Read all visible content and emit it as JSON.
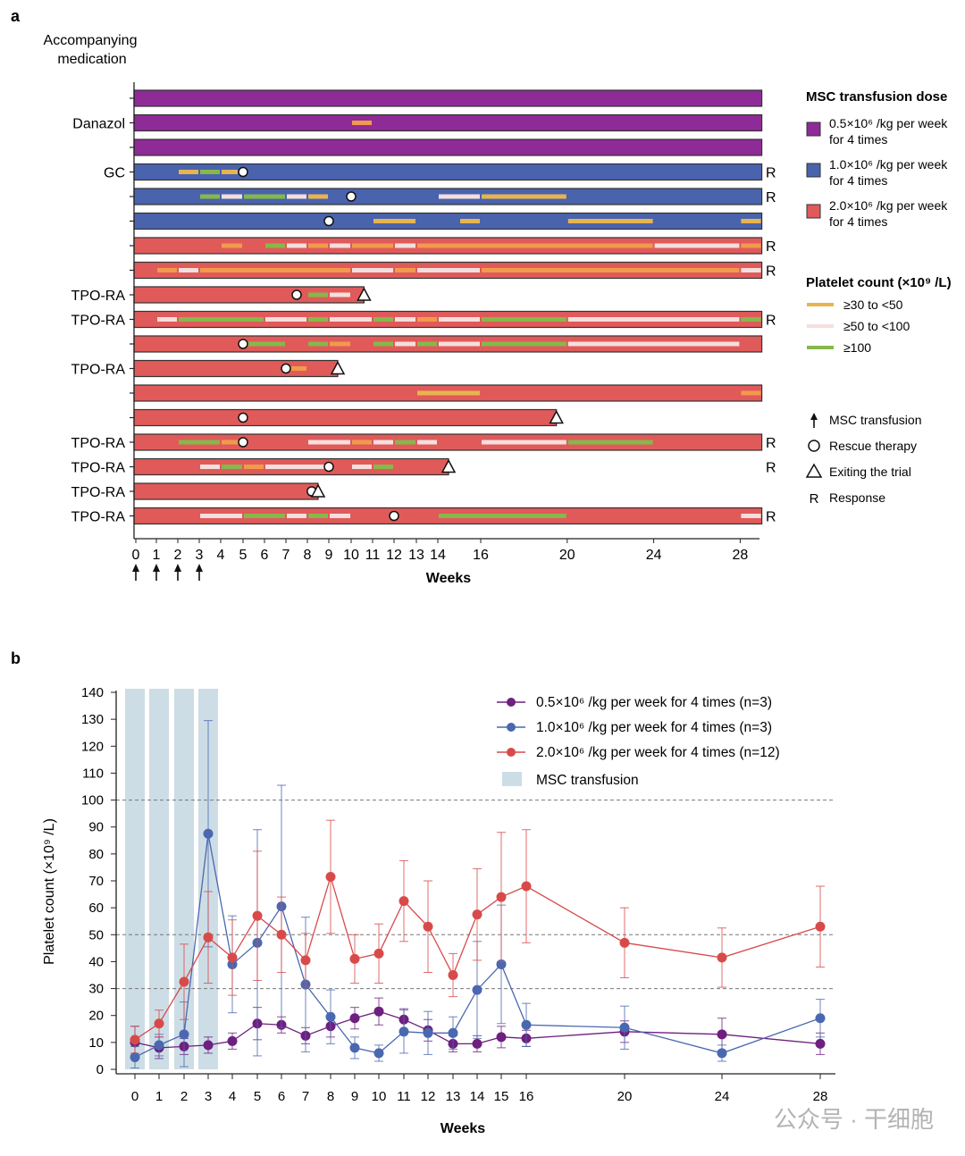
{
  "colors": {
    "dose_low": "#8e2b97",
    "dose_mid": "#4a63ad",
    "dose_high": "#e05a5a",
    "pc_30_50": "#e8b44e",
    "pc_50_100": "#f4dfdd",
    "pc_100": "#86b84b",
    "pc_orange": "#f19a4c",
    "line_low": "#6e1f7f",
    "line_mid": "#4a68b0",
    "line_high": "#d84a4a",
    "msc_band": "#cddde6"
  },
  "panel_a": {
    "label": "a",
    "med_header": [
      "Accompanying",
      "medication"
    ],
    "legend_dose": {
      "title": "MSC transfusion dose",
      "items": [
        {
          "line1": "0.5×10⁶ /kg per week",
          "line2": "for 4 times",
          "color_key": "dose_low"
        },
        {
          "line1": "1.0×10⁶ /kg per week",
          "line2": "for 4 times",
          "color_key": "dose_mid"
        },
        {
          "line1": "2.0×10⁶ /kg per week",
          "line2": "for 4 times",
          "color_key": "dose_high"
        }
      ]
    },
    "legend_platelet": {
      "title": "Platelet count (×10⁹ /L)",
      "items": [
        {
          "label": "≥30 to <50",
          "color_key": "pc_30_50"
        },
        {
          "label": "≥50 to <100",
          "color_key": "pc_50_100"
        },
        {
          "label": "≥100",
          "color_key": "pc_100"
        }
      ]
    },
    "legend_symbols": [
      {
        "symbol": "arrow",
        "label": "MSC transfusion"
      },
      {
        "symbol": "circle",
        "label": "Rescue therapy"
      },
      {
        "symbol": "triangle",
        "label": "Exiting the trial"
      },
      {
        "symbol": "R",
        "label": "Response"
      }
    ],
    "x_ticks": [
      {
        "week": 0,
        "label": "0"
      },
      {
        "week": 1,
        "label": "1"
      },
      {
        "week": 2,
        "label": "2"
      },
      {
        "week": 3,
        "label": "3"
      },
      {
        "week": 4,
        "label": "4"
      },
      {
        "week": 5,
        "label": "5"
      },
      {
        "week": 6,
        "label": "6"
      },
      {
        "week": 7,
        "label": "7"
      },
      {
        "week": 8,
        "label": "8"
      },
      {
        "week": 9,
        "label": "9"
      },
      {
        "week": 10,
        "label": "10"
      },
      {
        "week": 11,
        "label": "11"
      },
      {
        "week": 12,
        "label": "12"
      },
      {
        "week": 13,
        "label": "13"
      },
      {
        "week": 14,
        "label": "14"
      },
      {
        "week": 16,
        "label": "16"
      },
      {
        "week": 20,
        "label": "20"
      },
      {
        "week": 24,
        "label": "24"
      },
      {
        "week": 28,
        "label": "28"
      }
    ],
    "x_label": "Weeks",
    "transfusion_weeks": [
      0,
      1,
      2,
      3
    ],
    "patients": [
      {
        "dose": "dose_low",
        "med": "",
        "end": 29,
        "response": "",
        "rescue": null,
        "exit": null,
        "segments": []
      },
      {
        "dose": "dose_low",
        "med": "Danazol",
        "end": 29,
        "response": "",
        "rescue": null,
        "exit": null,
        "segments": [
          [
            10,
            11,
            "pc_orange"
          ]
        ]
      },
      {
        "dose": "dose_low",
        "med": "",
        "end": 29,
        "response": "",
        "rescue": null,
        "exit": null,
        "segments": []
      },
      {
        "dose": "dose_mid",
        "med": "GC",
        "end": 29,
        "response": "R",
        "rescue": 5,
        "exit": null,
        "segments": [
          [
            2,
            3,
            "pc_30_50"
          ],
          [
            3,
            4,
            "pc_100"
          ],
          [
            4,
            4.8,
            "pc_30_50"
          ]
        ]
      },
      {
        "dose": "dose_mid",
        "med": "",
        "end": 29,
        "response": "R",
        "rescue": 10,
        "exit": null,
        "segments": [
          [
            3,
            4,
            "pc_100"
          ],
          [
            4,
            5,
            "pc_50_100"
          ],
          [
            5,
            7,
            "pc_100"
          ],
          [
            7,
            8,
            "pc_50_100"
          ],
          [
            8,
            9,
            "pc_30_50"
          ],
          [
            14,
            16,
            "pc_50_100"
          ],
          [
            16,
            20,
            "pc_30_50"
          ]
        ]
      },
      {
        "dose": "dose_mid",
        "med": "",
        "end": 29,
        "response": "",
        "rescue": 9,
        "exit": null,
        "segments": [
          [
            11,
            13,
            "pc_30_50"
          ],
          [
            15,
            16,
            "pc_30_50"
          ],
          [
            20,
            24,
            "pc_30_50"
          ],
          [
            28,
            29,
            "pc_30_50"
          ]
        ]
      },
      {
        "dose": "dose_high",
        "med": "",
        "end": 29,
        "response": "R",
        "rescue": null,
        "exit": null,
        "segments": [
          [
            4,
            5,
            "pc_orange"
          ],
          [
            6,
            7,
            "pc_100"
          ],
          [
            7,
            8,
            "pc_50_100"
          ],
          [
            8,
            9,
            "pc_orange"
          ],
          [
            9,
            10,
            "pc_50_100"
          ],
          [
            10,
            12,
            "pc_orange"
          ],
          [
            12,
            13,
            "pc_50_100"
          ],
          [
            13,
            24,
            "pc_orange"
          ],
          [
            24,
            28,
            "pc_50_100"
          ],
          [
            28,
            29,
            "pc_orange"
          ]
        ]
      },
      {
        "dose": "dose_high",
        "med": "",
        "end": 29,
        "response": "R",
        "rescue": null,
        "exit": null,
        "segments": [
          [
            1,
            2,
            "pc_orange"
          ],
          [
            2,
            3,
            "pc_50_100"
          ],
          [
            3,
            10,
            "pc_orange"
          ],
          [
            10,
            12,
            "pc_50_100"
          ],
          [
            12,
            13,
            "pc_orange"
          ],
          [
            13,
            16,
            "pc_50_100"
          ],
          [
            16,
            28,
            "pc_orange"
          ],
          [
            28,
            29,
            "pc_50_100"
          ]
        ]
      },
      {
        "dose": "dose_high",
        "med": "TPO-RA",
        "end": 10.6,
        "response": "",
        "rescue": 7.5,
        "exit": 10.6,
        "segments": [
          [
            8,
            9,
            "pc_100"
          ],
          [
            9,
            10,
            "pc_50_100"
          ]
        ]
      },
      {
        "dose": "dose_high",
        "med": "TPO-RA",
        "end": 29,
        "response": "R",
        "rescue": null,
        "exit": null,
        "segments": [
          [
            1,
            2,
            "pc_50_100"
          ],
          [
            2,
            6,
            "pc_100"
          ],
          [
            6,
            8,
            "pc_50_100"
          ],
          [
            8,
            9,
            "pc_100"
          ],
          [
            9,
            11,
            "pc_50_100"
          ],
          [
            11,
            12,
            "pc_100"
          ],
          [
            12,
            13,
            "pc_50_100"
          ],
          [
            13,
            14,
            "pc_orange"
          ],
          [
            14,
            16,
            "pc_50_100"
          ],
          [
            16,
            20,
            "pc_100"
          ],
          [
            20,
            28,
            "pc_50_100"
          ],
          [
            28,
            29,
            "pc_100"
          ]
        ]
      },
      {
        "dose": "dose_high",
        "med": "",
        "end": 29,
        "response": "",
        "rescue": 5,
        "exit": null,
        "segments": [
          [
            5,
            7,
            "pc_100"
          ],
          [
            8,
            9,
            "pc_100"
          ],
          [
            9,
            10,
            "pc_orange"
          ],
          [
            11,
            12,
            "pc_100"
          ],
          [
            12,
            13,
            "pc_50_100"
          ],
          [
            13,
            14,
            "pc_100"
          ],
          [
            14,
            16,
            "pc_50_100"
          ],
          [
            16,
            20,
            "pc_100"
          ],
          [
            20,
            28,
            "pc_50_100"
          ]
        ]
      },
      {
        "dose": "dose_high",
        "med": "TPO-RA",
        "end": 9.4,
        "response": "",
        "rescue": 7,
        "exit": 9.4,
        "segments": [
          [
            7,
            8,
            "pc_orange"
          ]
        ]
      },
      {
        "dose": "dose_high",
        "med": "",
        "end": 29,
        "response": "",
        "rescue": null,
        "exit": null,
        "segments": [
          [
            13,
            16,
            "pc_30_50"
          ],
          [
            28,
            29,
            "pc_orange"
          ]
        ]
      },
      {
        "dose": "dose_high",
        "med": "",
        "end": 19.5,
        "response": "",
        "rescue": 5,
        "exit": 19.5,
        "segments": []
      },
      {
        "dose": "dose_high",
        "med": "TPO-RA",
        "end": 29,
        "response": "R",
        "rescue": 5,
        "exit": null,
        "segments": [
          [
            2,
            4,
            "pc_100"
          ],
          [
            4,
            5,
            "pc_orange"
          ],
          [
            8,
            10,
            "pc_50_100"
          ],
          [
            10,
            11,
            "pc_orange"
          ],
          [
            11,
            12,
            "pc_50_100"
          ],
          [
            12,
            13,
            "pc_100"
          ],
          [
            13,
            14,
            "pc_50_100"
          ],
          [
            16,
            20,
            "pc_50_100"
          ],
          [
            20,
            24,
            "pc_100"
          ]
        ]
      },
      {
        "dose": "dose_high",
        "med": "TPO-RA",
        "end": 14.5,
        "response": "R",
        "rescue": 9,
        "exit": 14.5,
        "segments": [
          [
            3,
            4,
            "pc_50_100"
          ],
          [
            4,
            5,
            "pc_100"
          ],
          [
            5,
            6,
            "pc_orange"
          ],
          [
            6,
            9,
            "pc_50_100"
          ],
          [
            10,
            11,
            "pc_50_100"
          ],
          [
            11,
            12,
            "pc_100"
          ]
        ]
      },
      {
        "dose": "dose_high",
        "med": "TPO-RA",
        "end": 8.5,
        "response": "",
        "rescue": 8.2,
        "exit": 8.5,
        "segments": []
      },
      {
        "dose": "dose_high",
        "med": "TPO-RA",
        "end": 29,
        "response": "R",
        "rescue": 12,
        "exit": null,
        "segments": [
          [
            3,
            5,
            "pc_50_100"
          ],
          [
            5,
            7,
            "pc_100"
          ],
          [
            7,
            8,
            "pc_50_100"
          ],
          [
            8,
            9,
            "pc_100"
          ],
          [
            9,
            10,
            "pc_50_100"
          ],
          [
            14,
            20,
            "pc_100"
          ],
          [
            28,
            29,
            "pc_50_100"
          ]
        ]
      }
    ]
  },
  "chart_data": {
    "type": "line",
    "label": "b",
    "title": "",
    "xlabel": "Weeks",
    "ylabel": "Platelet count (×10⁹ /L)",
    "ylim": [
      0,
      140
    ],
    "y_ticks": [
      0,
      10,
      20,
      30,
      40,
      50,
      60,
      70,
      80,
      90,
      100,
      110,
      120,
      130,
      140
    ],
    "x_categories": [
      "0",
      "1",
      "2",
      "3",
      "4",
      "5",
      "6",
      "7",
      "8",
      "9",
      "10",
      "11",
      "12",
      "13",
      "14",
      "15",
      "16",
      "20",
      "24",
      "28"
    ],
    "reference_lines": [
      30,
      50,
      100
    ],
    "msc_transfusion_weeks": [
      "0",
      "1",
      "2",
      "3"
    ],
    "legend_msc": "MSC transfusion",
    "series": [
      {
        "name": "0.5×10⁶ /kg per week for 4 times (n=3)",
        "color_key": "line_low",
        "x": [
          "0",
          "1",
          "2",
          "3",
          "4",
          "5",
          "6",
          "7",
          "8",
          "9",
          "10",
          "11",
          "12",
          "13",
          "14",
          "15",
          "16",
          "20",
          "24",
          "28"
        ],
        "values": [
          10,
          8,
          8.5,
          9,
          10.5,
          17,
          16.5,
          12.5,
          16,
          19,
          21.5,
          18.5,
          14.5,
          9.5,
          9.5,
          12,
          11.5,
          14,
          13,
          9.5
        ],
        "err_up": [
          6,
          4,
          3,
          3,
          3,
          6,
          3,
          3,
          4,
          4,
          5,
          4,
          4,
          3,
          3,
          4,
          3,
          4,
          6,
          4
        ],
        "err_down": [
          6,
          4,
          3,
          3,
          3,
          6,
          3,
          3,
          4,
          4,
          5,
          4,
          4,
          3,
          3,
          4,
          3,
          4,
          6,
          4
        ]
      },
      {
        "name": "1.0×10⁶ /kg per week for 4 times (n=3)",
        "color_key": "line_mid",
        "x": [
          "0",
          "1",
          "2",
          "3",
          "4",
          "5",
          "6",
          "7",
          "8",
          "9",
          "10",
          "11",
          "12",
          "13",
          "14",
          "15",
          "16",
          "20",
          "24",
          "28"
        ],
        "values": [
          4.5,
          9,
          13,
          87.5,
          39,
          47,
          60.5,
          31.5,
          19.5,
          8,
          6,
          14,
          13.5,
          13.5,
          29.5,
          39,
          16.5,
          15.5,
          6,
          19
        ],
        "err_up": [
          4,
          4,
          12,
          42,
          18,
          42,
          45,
          25,
          10,
          4,
          3,
          8,
          8,
          6,
          18,
          22,
          8,
          8,
          3,
          7
        ],
        "err_down": [
          4,
          4,
          12,
          42,
          18,
          42,
          45,
          25,
          10,
          4,
          3,
          8,
          8,
          6,
          18,
          22,
          8,
          8,
          3,
          7
        ]
      },
      {
        "name": "2.0×10⁶ /kg per week for 4 times (n=12)",
        "color_key": "line_high",
        "x": [
          "0",
          "1",
          "2",
          "3",
          "4",
          "5",
          "6",
          "7",
          "8",
          "9",
          "10",
          "11",
          "12",
          "13",
          "14",
          "15",
          "16",
          "20",
          "24",
          "28"
        ],
        "values": [
          11,
          17,
          32.5,
          49,
          41.5,
          57,
          50,
          40.5,
          71.5,
          41,
          43,
          62.5,
          53,
          35,
          57.5,
          64,
          68,
          47,
          41.5,
          53
        ],
        "err_up": [
          5,
          5,
          14,
          17,
          14,
          24,
          14,
          10,
          21,
          9,
          11,
          15,
          17,
          8,
          17,
          24,
          21,
          13,
          11,
          15
        ],
        "err_down": [
          5,
          5,
          14,
          17,
          14,
          24,
          14,
          10,
          21,
          9,
          11,
          15,
          17,
          8,
          17,
          24,
          21,
          13,
          11,
          15
        ]
      }
    ]
  },
  "watermark": "公众号 · 干细胞"
}
